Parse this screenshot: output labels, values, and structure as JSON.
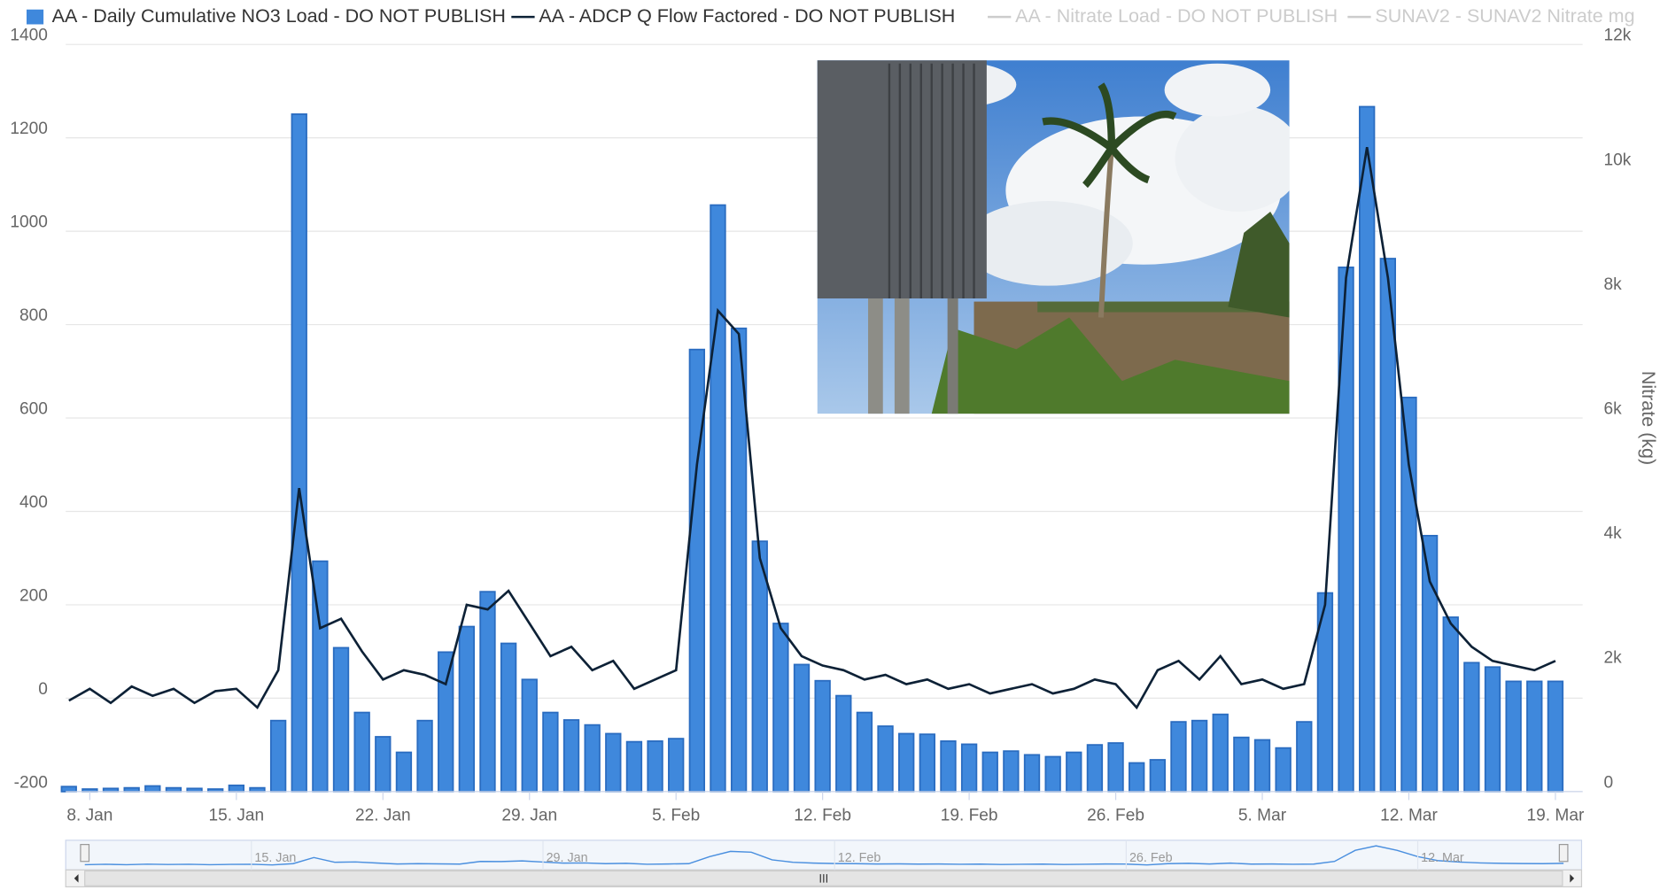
{
  "chart_data": {
    "type": "combo",
    "legend": "top",
    "grid": true,
    "x": [
      7,
      8,
      9,
      10,
      11,
      12,
      13,
      14,
      15,
      16,
      17,
      18,
      19,
      20,
      21,
      22,
      23,
      24,
      25,
      26,
      27,
      28,
      29,
      30,
      31,
      32,
      33,
      34,
      35,
      36,
      37,
      38,
      39,
      40,
      41,
      42,
      43,
      44,
      45,
      46,
      47,
      48,
      49,
      50,
      51,
      52,
      53,
      54,
      55,
      56,
      57,
      58,
      59,
      60,
      61,
      62,
      63,
      64,
      65,
      66,
      67,
      68,
      69,
      70,
      71,
      72,
      73,
      74,
      75,
      76,
      77,
      78
    ],
    "xlim": [
      6.85,
      79.3
    ],
    "xticks": [
      {
        "value": 8,
        "label": "8. Jan"
      },
      {
        "value": 15,
        "label": "15. Jan"
      },
      {
        "value": 22,
        "label": "22. Jan"
      },
      {
        "value": 29,
        "label": "29. Jan"
      },
      {
        "value": 36,
        "label": "5. Feb"
      },
      {
        "value": 43,
        "label": "12. Feb"
      },
      {
        "value": 50,
        "label": "19. Feb"
      },
      {
        "value": 57,
        "label": "26. Feb"
      },
      {
        "value": 64,
        "label": "5. Mar"
      },
      {
        "value": 71,
        "label": "12. Mar"
      },
      {
        "value": 78,
        "label": "19. Mar"
      }
    ],
    "ylim": [
      -200,
      1400
    ],
    "yticks": [
      -200,
      0,
      200,
      400,
      600,
      800,
      1000,
      1200,
      1400
    ],
    "y2lim": [
      0,
      12000
    ],
    "y2ticks": [
      0,
      {
        "value": 2000,
        "label": "2k"
      },
      {
        "value": 4000,
        "label": "4k"
      },
      {
        "value": 6000,
        "label": "6k"
      },
      {
        "value": 8000,
        "label": "8k"
      },
      {
        "value": 10000,
        "label": "10k"
      },
      {
        "value": 12000,
        "label": "12k"
      }
    ],
    "y2label": "Nitrate (kg)",
    "series": [
      {
        "name": "AA - Daily Cumulative NO3 Load - DO NOT PUBLISH",
        "type": "bar",
        "axis": "y2",
        "color": "#3f88dc",
        "values": [
          80,
          40,
          50,
          60,
          90,
          60,
          50,
          40,
          100,
          60,
          1140,
          10880,
          3700,
          2310,
          1270,
          880,
          630,
          1140,
          2240,
          2650,
          3210,
          2380,
          1800,
          1270,
          1150,
          1070,
          930,
          800,
          810,
          850,
          7100,
          9420,
          7440,
          4020,
          2700,
          2040,
          1780,
          1540,
          1270,
          1050,
          930,
          920,
          810,
          760,
          630,
          650,
          590,
          560,
          630,
          750,
          780,
          460,
          510,
          1120,
          1140,
          1240,
          870,
          830,
          700,
          1120,
          3190,
          8420,
          11000,
          8560,
          6330,
          4110,
          2800,
          2070,
          2000,
          1770,
          1770,
          1770
        ]
      },
      {
        "name": "AA - ADCP Q Flow Factored - DO NOT PUBLISH",
        "type": "line",
        "color": "#0d2136",
        "values": [
          -5,
          20,
          -10,
          25,
          5,
          20,
          -10,
          15,
          20,
          -20,
          60,
          450,
          150,
          170,
          100,
          40,
          60,
          50,
          30,
          200,
          190,
          230,
          160,
          90,
          110,
          60,
          80,
          20,
          40,
          60,
          500,
          830,
          780,
          300,
          150,
          90,
          70,
          60,
          40,
          50,
          30,
          40,
          20,
          30,
          10,
          20,
          30,
          10,
          20,
          40,
          30,
          -20,
          60,
          80,
          40,
          90,
          30,
          40,
          20,
          30,
          200,
          900,
          1180,
          900,
          500,
          250,
          160,
          110,
          80,
          70,
          60,
          80
        ]
      },
      {
        "name": "AA - Nitrate Load - DO NOT PUBLISH",
        "type": "line",
        "visible": false
      },
      {
        "name": "SUNAV2 - SUNAV2 Nitrate mg",
        "type": "line",
        "visible": false
      }
    ],
    "navigator": {
      "xticks": [
        {
          "value": 15,
          "label": "15. Jan"
        },
        {
          "value": 29,
          "label": "29. Jan"
        },
        {
          "value": 43,
          "label": "12. Feb"
        },
        {
          "value": 57,
          "label": "26. Feb"
        },
        {
          "value": 71,
          "label": "12. Mar"
        }
      ]
    }
  }
}
